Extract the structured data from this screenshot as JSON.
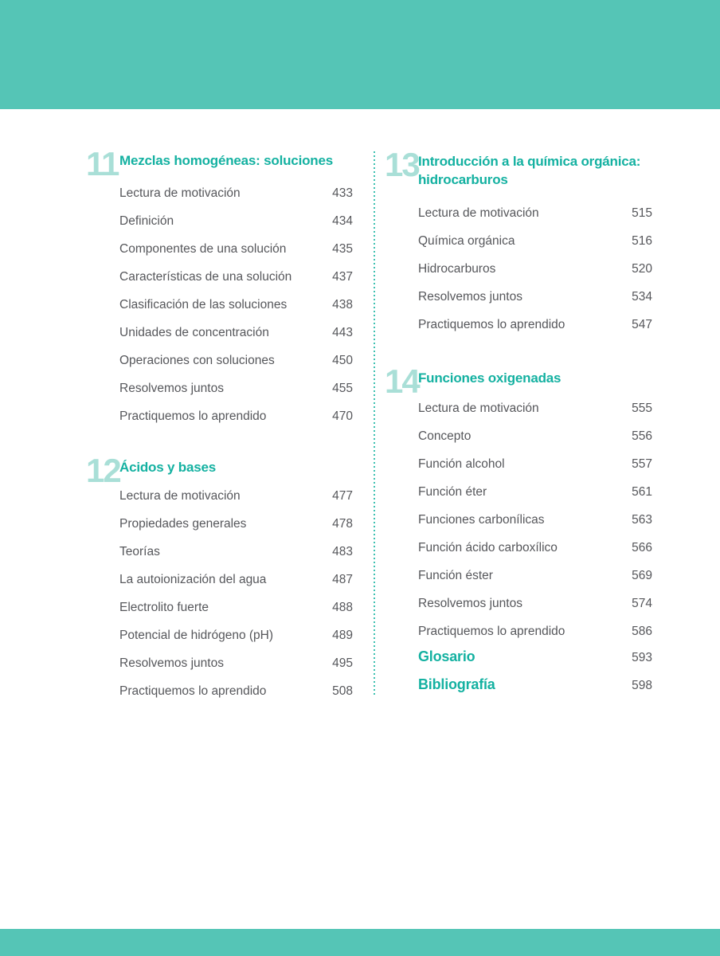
{
  "theme": {
    "band_color": "#55C5B6",
    "chapter_number_color": "#A9DFD7",
    "chapter_title_color": "#14B1A1",
    "entry_text_color": "#56575B",
    "divider_color": "#3EC1B1",
    "background_color": "#FFFFFF"
  },
  "toc": {
    "chapters": [
      {
        "number": "11",
        "title": "Mezclas homogéneas: soluciones",
        "column": "left",
        "entries": [
          {
            "label": "Lectura de motivación",
            "page": "433"
          },
          {
            "label": "Definición",
            "page": "434"
          },
          {
            "label": "Componentes de una solución",
            "page": "435"
          },
          {
            "label": "Características de una solución",
            "page": "437"
          },
          {
            "label": "Clasificación de las soluciones",
            "page": "438"
          },
          {
            "label": "Unidades de concentración",
            "page": "443"
          },
          {
            "label": "Operaciones con soluciones",
            "page": "450"
          },
          {
            "label": "Resolvemos juntos",
            "page": "455"
          },
          {
            "label": "Practiquemos lo aprendido",
            "page": "470"
          }
        ]
      },
      {
        "number": "12",
        "title": "Ácidos y bases",
        "column": "left",
        "entries": [
          {
            "label": "Lectura de motivación",
            "page": "477"
          },
          {
            "label": "Propiedades generales",
            "page": "478"
          },
          {
            "label": "Teorías",
            "page": "483"
          },
          {
            "label": "La autoionización del agua",
            "page": "487"
          },
          {
            "label": "Electrolito fuerte",
            "page": "488"
          },
          {
            "label": "Potencial de hidrógeno (pH)",
            "page": "489"
          },
          {
            "label": "Resolvemos juntos",
            "page": "495"
          },
          {
            "label": "Practiquemos lo aprendido",
            "page": "508"
          }
        ]
      },
      {
        "number": "13",
        "title": "Introducción a la química orgánica: hidrocarburos",
        "column": "right",
        "entries": [
          {
            "label": "Lectura de motivación",
            "page": "515"
          },
          {
            "label": "Química orgánica",
            "page": "516"
          },
          {
            "label": "Hidrocarburos",
            "page": "520"
          },
          {
            "label": "Resolvemos juntos",
            "page": "534"
          },
          {
            "label": "Practiquemos lo aprendido",
            "page": "547"
          }
        ]
      },
      {
        "number": "14",
        "title": "Funciones oxigenadas",
        "column": "right",
        "entries": [
          {
            "label": "Lectura de motivación",
            "page": "555"
          },
          {
            "label": "Concepto",
            "page": "556"
          },
          {
            "label": "Función alcohol",
            "page": "557"
          },
          {
            "label": "Función éter",
            "page": "561"
          },
          {
            "label": "Funciones carbonílicas",
            "page": "563"
          },
          {
            "label": "Función ácido carboxílico",
            "page": "566"
          },
          {
            "label": "Función éster",
            "page": "569"
          },
          {
            "label": "Resolvemos juntos",
            "page": "574"
          },
          {
            "label": "Practiquemos lo aprendido",
            "page": "586"
          }
        ]
      }
    ],
    "back_matter": [
      {
        "title": "Glosario",
        "page": "593"
      },
      {
        "title": "Bibliografía",
        "page": "598"
      }
    ]
  }
}
